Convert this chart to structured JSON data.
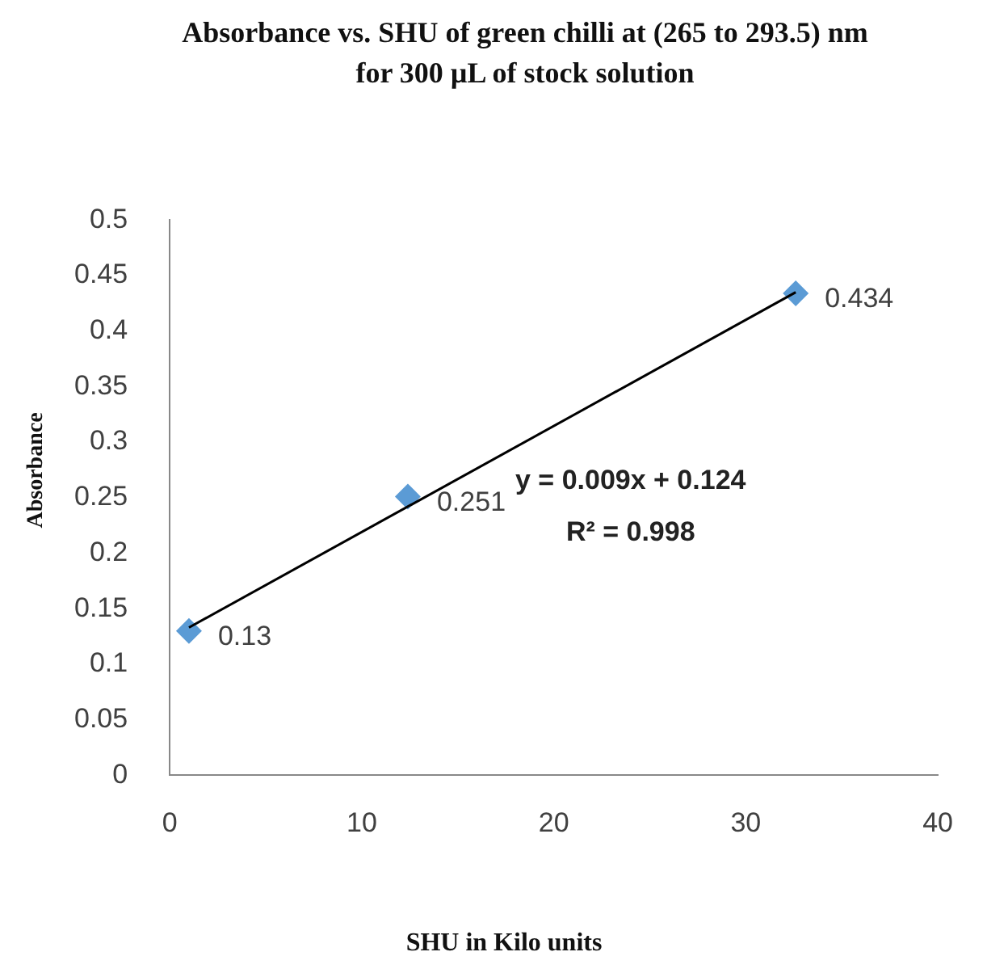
{
  "chart_data": {
    "type": "scatter",
    "title": "Absorbance vs. SHU of green chilli at (265 to 293.5) nm for 300 µL of stock solution",
    "xlabel": "SHU in Kilo units",
    "ylabel": "Absorbance",
    "series": [
      {
        "color": "#5b9bd5",
        "marker": "diamond",
        "x": [
          1,
          12.4,
          32.6
        ],
        "values": [
          0.13,
          0.251,
          0.434
        ],
        "value_labels": [
          "0.13",
          "0.251",
          "0.434"
        ]
      },
      {
        "type": "line",
        "color": "#000000",
        "marker": "none",
        "line_style": "solid",
        "x": [
          1,
          32.6
        ],
        "values": [
          0.133,
          0.435
        ]
      }
    ],
    "annotations": [
      "y = 0.009x + 0.124",
      "R² = 0.998"
    ],
    "xlim": [
      0,
      40
    ],
    "xticks": [
      0,
      10,
      20,
      30,
      40
    ],
    "ylim": [
      0,
      0.5
    ],
    "yticks": [
      0,
      0.05,
      0.1,
      0.15,
      0.2,
      0.25,
      0.3,
      0.35,
      0.4,
      0.45,
      0.5
    ],
    "grid": false,
    "legend": false
  }
}
